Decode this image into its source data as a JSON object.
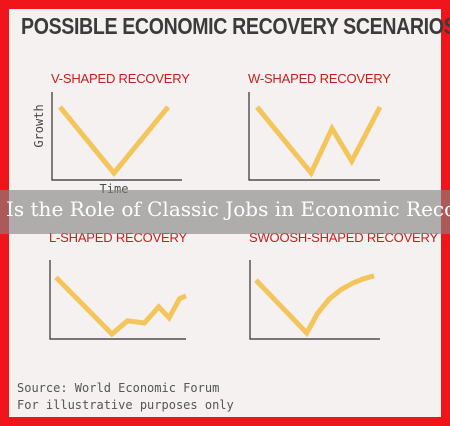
{
  "page": {
    "title": "POSSIBLE ECONOMIC RECOVERY SCENARIOS",
    "banner": "Is the Role of Classic Jobs in Economic Recovery",
    "source": "Source: World Economic Forum",
    "note": "For illustrative purposes only"
  },
  "colors": {
    "frame": "#f0151a",
    "panel_title": "#c41e1e",
    "curve": "#f3c55a",
    "axis": "#2f2f2f"
  },
  "chart_data": [
    {
      "type": "line",
      "title": "V-SHAPED RECOVERY",
      "xlabel": "Time",
      "ylabel": "Growth",
      "grid": false,
      "series": [
        {
          "x": [
            0.0,
            0.5,
            1.0
          ],
          "y": [
            0.83,
            0.0,
            0.83
          ]
        }
      ]
    },
    {
      "type": "line",
      "title": "W-SHAPED RECOVERY",
      "xlabel": "",
      "ylabel": "",
      "grid": false,
      "series": [
        {
          "x": [
            0.0,
            0.44,
            0.61,
            0.77,
            1.0
          ],
          "y": [
            0.83,
            0.0,
            0.56,
            0.15,
            0.83
          ]
        }
      ]
    },
    {
      "type": "line",
      "title": "L-SHAPED RECOVERY",
      "xlabel": "",
      "ylabel": "",
      "grid": false,
      "series": [
        {
          "x": [
            0.0,
            0.43,
            0.55,
            0.68,
            0.79,
            0.87,
            0.95,
            1.0
          ],
          "y": [
            0.77,
            0.0,
            0.18,
            0.15,
            0.37,
            0.22,
            0.48,
            0.52
          ]
        }
      ]
    },
    {
      "type": "line",
      "title": "SWOOSH-SHAPED RECOVERY",
      "xlabel": "",
      "ylabel": "",
      "grid": false,
      "series": [
        {
          "x": [
            0.0,
            0.43,
            0.52,
            0.62,
            0.72,
            0.82,
            0.91,
            1.0
          ],
          "y": [
            0.73,
            0.0,
            0.27,
            0.47,
            0.6,
            0.69,
            0.75,
            0.79
          ]
        }
      ]
    }
  ]
}
